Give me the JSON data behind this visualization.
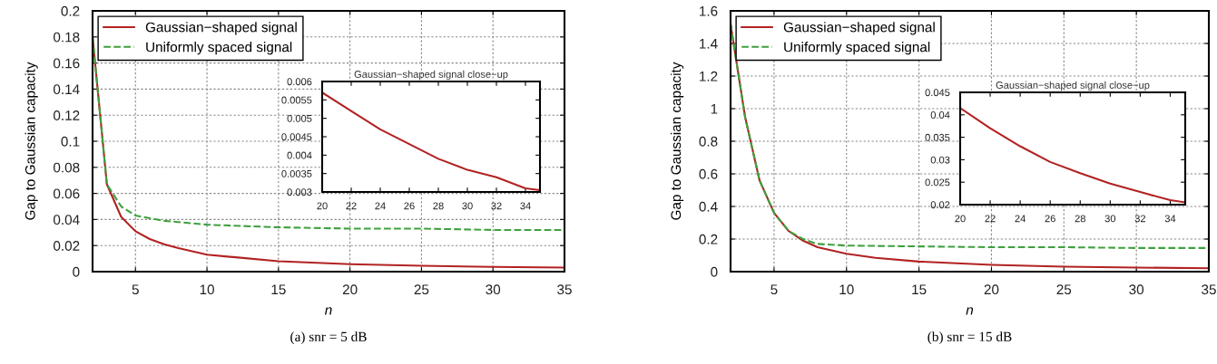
{
  "chart_data": [
    {
      "type": "line",
      "xlabel": "n",
      "ylabel": "Gap to Gaussian capacity",
      "xlim": [
        2,
        35
      ],
      "xticks": [
        5,
        10,
        15,
        20,
        25,
        30,
        35
      ],
      "ylim": [
        0,
        0.2
      ],
      "yticks": [
        0,
        0.02,
        0.04,
        0.06,
        0.08,
        0.1,
        0.12,
        0.14,
        0.16,
        0.18,
        0.2
      ],
      "grid": true,
      "legend": "top left",
      "annotations": [
        "(a) snr = 5 dB"
      ],
      "series": [
        {
          "name": "Gaussian−shaped signal",
          "color": "#b22222",
          "line_style": "solid",
          "x": [
            2,
            3,
            4,
            5,
            6,
            7,
            8,
            10,
            12,
            15,
            20,
            25,
            30,
            35
          ],
          "values": [
            0.18,
            0.067,
            0.042,
            0.031,
            0.025,
            0.021,
            0.018,
            0.013,
            0.011,
            0.008,
            0.0057,
            0.0045,
            0.0036,
            0.0031
          ]
        },
        {
          "name": "Uniformly spaced signal",
          "color": "#3fa03f",
          "line_style": "dashed",
          "x": [
            2,
            3,
            4,
            5,
            6,
            7,
            10,
            15,
            20,
            25,
            30,
            35
          ],
          "values": [
            0.18,
            0.067,
            0.05,
            0.043,
            0.041,
            0.039,
            0.036,
            0.034,
            0.033,
            0.033,
            0.032,
            0.032
          ]
        }
      ]
    },
    {
      "type": "line",
      "title": "Gaussian−shaped signal close−up",
      "xlim": [
        20,
        35
      ],
      "xticks": [
        20,
        22,
        24,
        26,
        28,
        30,
        32,
        34
      ],
      "ylim": [
        0.003,
        0.006
      ],
      "yticks": [
        0.003,
        0.0035,
        0.004,
        0.0045,
        0.005,
        0.0055,
        0.006
      ],
      "grid": false,
      "series": [
        {
          "color": "#b22222",
          "line_style": "solid",
          "x": [
            20,
            22,
            24,
            26,
            28,
            30,
            32,
            34,
            35
          ],
          "values": [
            0.0057,
            0.0052,
            0.0047,
            0.0043,
            0.0039,
            0.0036,
            0.0034,
            0.0031,
            0.00305
          ]
        }
      ]
    },
    {
      "type": "line",
      "xlabel": "n",
      "ylabel": "Gap to Gaussian capacity",
      "xlim": [
        2,
        35
      ],
      "xticks": [
        5,
        10,
        15,
        20,
        25,
        30,
        35
      ],
      "ylim": [
        0,
        1.6
      ],
      "yticks": [
        0,
        0.2,
        0.4,
        0.6,
        0.8,
        1,
        1.2,
        1.4,
        1.6
      ],
      "grid": true,
      "legend": "top left",
      "annotations": [
        "(b) snr = 15 dB"
      ],
      "series": [
        {
          "name": "Gaussian−shaped signal",
          "color": "#b22222",
          "line_style": "solid",
          "x": [
            2,
            3,
            4,
            5,
            6,
            7,
            8,
            10,
            12,
            15,
            20,
            25,
            30,
            35
          ],
          "values": [
            1.52,
            0.95,
            0.56,
            0.36,
            0.25,
            0.19,
            0.15,
            0.11,
            0.085,
            0.062,
            0.042,
            0.031,
            0.025,
            0.021
          ]
        },
        {
          "name": "Uniformly spaced signal",
          "color": "#3fa03f",
          "line_style": "dashed",
          "x": [
            2,
            3,
            4,
            5,
            6,
            7,
            8,
            10,
            15,
            20,
            25,
            30,
            35
          ],
          "values": [
            1.52,
            0.95,
            0.56,
            0.36,
            0.25,
            0.2,
            0.17,
            0.16,
            0.155,
            0.15,
            0.15,
            0.145,
            0.145
          ]
        }
      ]
    },
    {
      "type": "line",
      "title": "Gaussian−shaped signal close−up",
      "xlim": [
        20,
        35
      ],
      "xticks": [
        20,
        22,
        24,
        26,
        28,
        30,
        32,
        34
      ],
      "ylim": [
        0.02,
        0.045
      ],
      "yticks": [
        0.02,
        0.025,
        0.03,
        0.035,
        0.04,
        0.045
      ],
      "grid": false,
      "series": [
        {
          "color": "#b22222",
          "line_style": "solid",
          "x": [
            20,
            22,
            24,
            26,
            28,
            30,
            32,
            34,
            35
          ],
          "values": [
            0.0415,
            0.037,
            0.033,
            0.0295,
            0.027,
            0.0247,
            0.0228,
            0.021,
            0.0205
          ]
        }
      ]
    }
  ]
}
